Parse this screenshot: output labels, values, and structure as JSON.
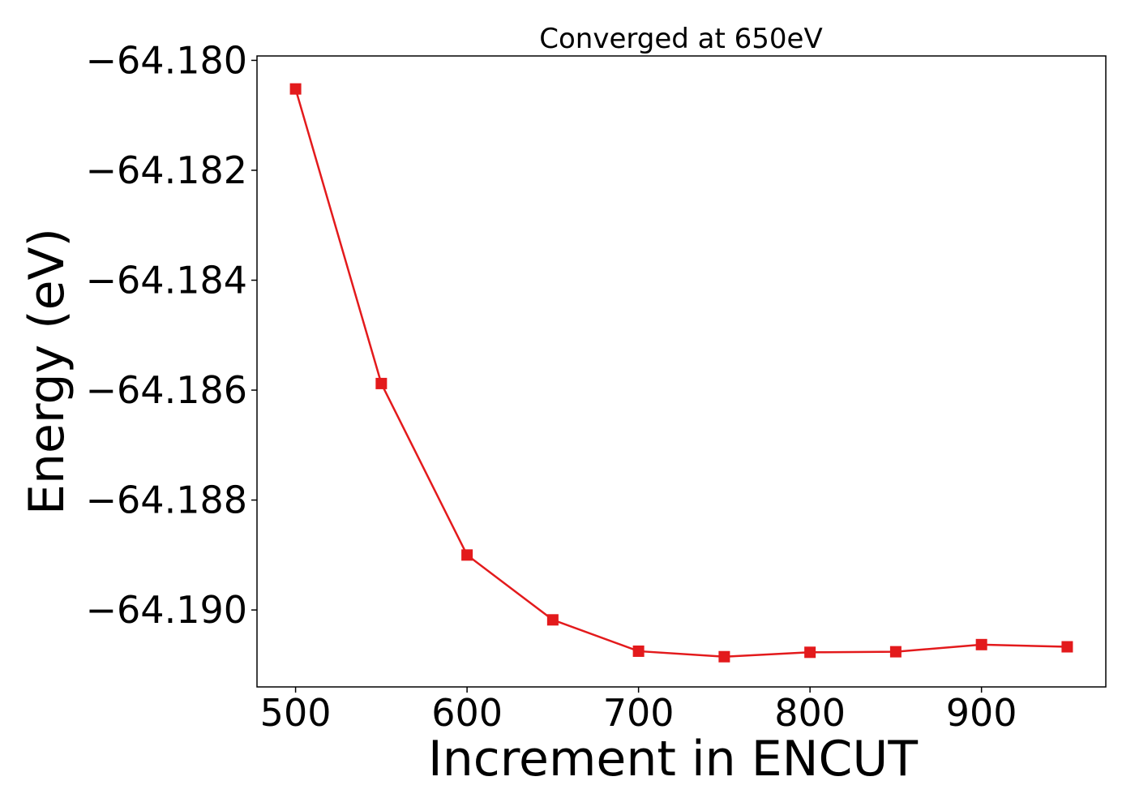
{
  "chart_data": {
    "type": "line",
    "title": "Converged at 650eV",
    "xlabel": "Increment in ENCUT",
    "ylabel": "Energy (eV)",
    "x": [
      500,
      550,
      600,
      650,
      700,
      750,
      800,
      850,
      900,
      950
    ],
    "series": [
      {
        "values": [
          -64.18052,
          -64.18588,
          -64.189,
          -64.19018,
          -64.19075,
          -64.19085,
          -64.19077,
          -64.19076,
          -64.19063,
          -64.19067
        ],
        "color": "#e31a1c",
        "marker": "square"
      }
    ],
    "xticks": [
      500,
      600,
      700,
      800,
      900
    ],
    "xtick_labels": [
      "500",
      "600",
      "700",
      "800",
      "900"
    ],
    "yticks": [
      -64.19,
      -64.188,
      -64.186,
      -64.184,
      -64.182,
      -64.18
    ],
    "ytick_labels": [
      "−64.190",
      "−64.188",
      "−64.186",
      "−64.184",
      "−64.182",
      "−64.180"
    ],
    "xlim": [
      477.5,
      972.5
    ],
    "ylim": [
      -64.1914,
      -64.17992
    ],
    "grid": false,
    "legend": false
  }
}
